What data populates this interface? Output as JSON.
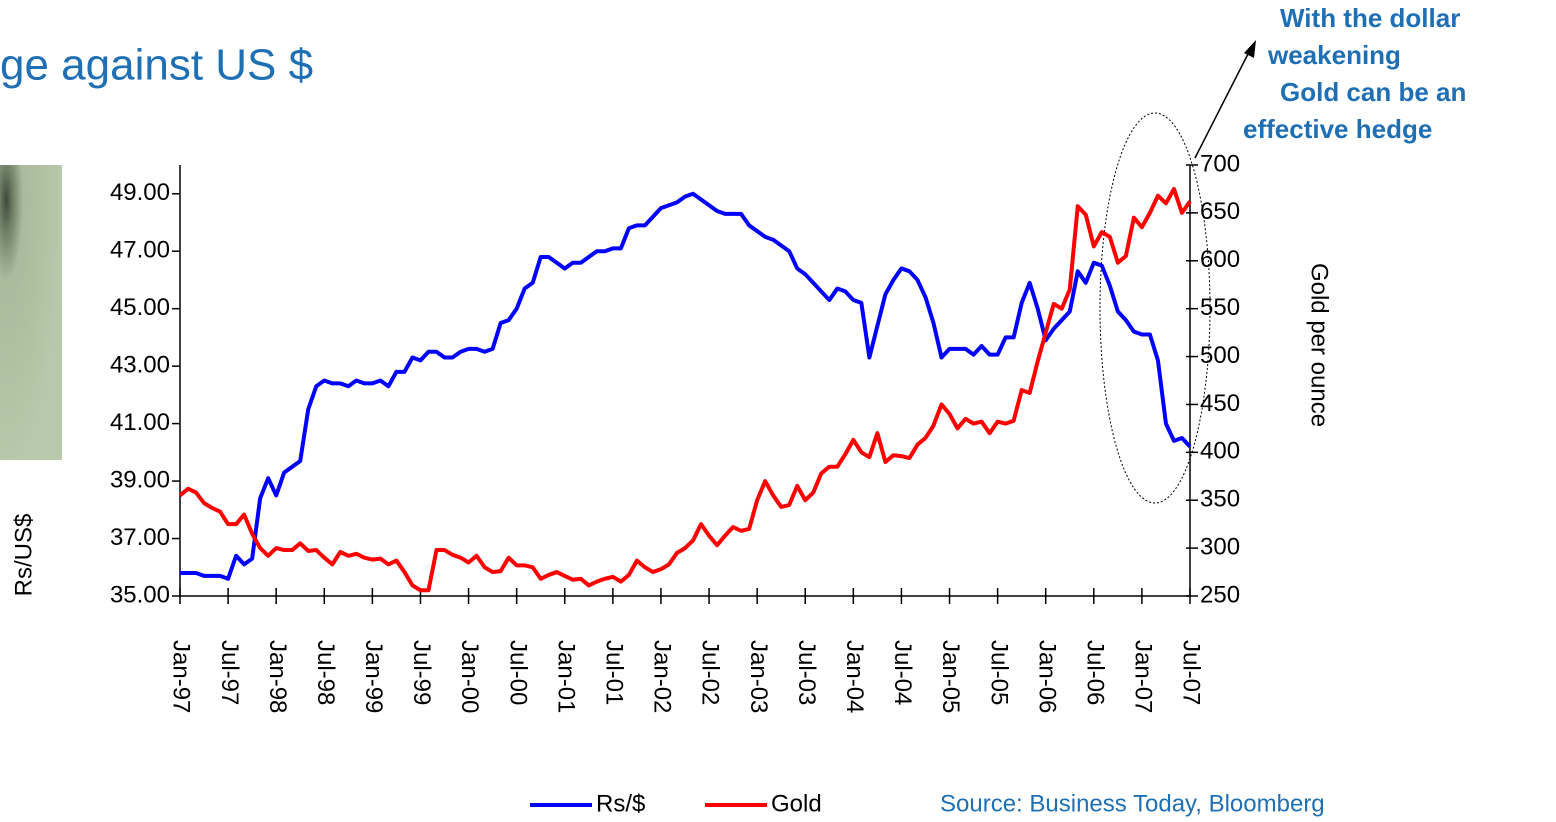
{
  "chart_data": {
    "type": "line",
    "title": "ge against US $",
    "annotation": [
      "With the dollar",
      "weakening",
      "Gold can be an",
      "effective hedge"
    ],
    "source": "Source: Business Today, Bloomberg",
    "y_label": "Rs/US$",
    "y2_label": "Gold per ounce",
    "categories": [
      "Jan-97",
      null,
      null,
      null,
      null,
      null,
      "Jul-97",
      null,
      null,
      null,
      null,
      null,
      "Jan-98",
      null,
      null,
      null,
      null,
      null,
      "Jul-98",
      null,
      null,
      null,
      null,
      null,
      "Jan-99",
      null,
      null,
      null,
      null,
      null,
      "Jul-99",
      null,
      null,
      null,
      null,
      null,
      "Jan-00",
      null,
      null,
      null,
      null,
      null,
      "Jul-00",
      null,
      null,
      null,
      null,
      null,
      "Jan-01",
      null,
      null,
      null,
      null,
      null,
      "Jul-01",
      null,
      null,
      null,
      null,
      null,
      "Jan-02",
      null,
      null,
      null,
      null,
      null,
      "Jul-02",
      null,
      null,
      null,
      null,
      null,
      "Jan-03",
      null,
      null,
      null,
      null,
      null,
      "Jul-03",
      null,
      null,
      null,
      null,
      null,
      "Jan-04",
      null,
      null,
      null,
      null,
      null,
      "Jul-04",
      null,
      null,
      null,
      null,
      null,
      "Jan-05",
      null,
      null,
      null,
      null,
      null,
      "Jul-05",
      null,
      null,
      null,
      null,
      null,
      "Jan-06",
      null,
      null,
      null,
      null,
      null,
      "Jul-06",
      null,
      null,
      null,
      null,
      null,
      "Jan-07",
      null,
      null,
      null,
      null,
      null,
      "Jul-07"
    ],
    "series": [
      {
        "name": "Rs/$",
        "color": "#0000ff",
        "values": [
          35.8,
          35.8,
          35.8,
          35.7,
          35.7,
          35.7,
          35.6,
          36.4,
          36.1,
          36.3,
          38.4,
          39.1,
          38.5,
          39.3,
          39.5,
          39.7,
          41.5,
          42.3,
          42.5,
          42.4,
          42.4,
          42.3,
          42.5,
          42.4,
          42.4,
          42.5,
          42.3,
          42.8,
          42.8,
          43.3,
          43.2,
          43.5,
          43.5,
          43.3,
          43.3,
          43.5,
          43.6,
          43.6,
          43.5,
          43.6,
          44.5,
          44.6,
          45.0,
          45.7,
          45.9,
          46.8,
          46.8,
          46.6,
          46.4,
          46.6,
          46.6,
          46.8,
          47.0,
          47.0,
          47.1,
          47.1,
          47.8,
          47.9,
          47.9,
          48.2,
          48.5,
          48.6,
          48.7,
          48.9,
          49.0,
          48.8,
          48.6,
          48.4,
          48.3,
          48.3,
          48.3,
          47.9,
          47.7,
          47.5,
          47.4,
          47.2,
          47.0,
          46.4,
          46.2,
          45.9,
          45.6,
          45.3,
          45.7,
          45.6,
          45.3,
          45.2,
          43.3,
          44.4,
          45.5,
          46.0,
          46.4,
          46.3,
          46.0,
          45.4,
          44.5,
          43.3,
          43.6,
          43.6,
          43.6,
          43.4,
          43.7,
          43.4,
          43.4,
          44.0,
          44.0,
          45.2,
          45.9,
          45.0,
          43.9,
          44.3,
          44.6,
          44.9,
          46.3,
          45.9,
          46.6,
          46.5,
          45.8,
          44.9,
          44.6,
          44.2,
          44.1,
          44.1,
          43.2,
          41.0,
          40.4,
          40.5,
          40.2
        ]
      },
      {
        "name": "Gold",
        "color": "#ff0000",
        "axis": "y2",
        "values": [
          355,
          362,
          358,
          347,
          342,
          338,
          325,
          325,
          335,
          315,
          300,
          292,
          300,
          298,
          298,
          305,
          297,
          298,
          290,
          283,
          296,
          292,
          294,
          290,
          288,
          289,
          283,
          287,
          275,
          261,
          256,
          256,
          298,
          298,
          293,
          290,
          285,
          292,
          280,
          275,
          276,
          290,
          282,
          282,
          280,
          268,
          272,
          275,
          271,
          267,
          268,
          261,
          265,
          268,
          270,
          265,
          272,
          287,
          280,
          275,
          278,
          283,
          295,
          300,
          308,
          325,
          313,
          303,
          313,
          322,
          318,
          320,
          350,
          370,
          355,
          343,
          345,
          365,
          350,
          358,
          378,
          385,
          385,
          398,
          413,
          400,
          395,
          420,
          390,
          397,
          396,
          394,
          408,
          415,
          428,
          450,
          440,
          425,
          435,
          430,
          432,
          420,
          432,
          430,
          433,
          465,
          462,
          495,
          525,
          555,
          550,
          570,
          657,
          648,
          615,
          630,
          625,
          598,
          605,
          645,
          635,
          650,
          668,
          660,
          675,
          650,
          662
        ]
      }
    ],
    "ylim": [
      35,
      50
    ],
    "yticks": [
      {
        "value": 35,
        "label": "35.00"
      },
      {
        "value": 37,
        "label": "37.00"
      },
      {
        "value": 39,
        "label": "39.00"
      },
      {
        "value": 41,
        "label": "41.00"
      },
      {
        "value": 43,
        "label": "43.00"
      },
      {
        "value": 45,
        "label": "45.00"
      },
      {
        "value": 47,
        "label": "47.00"
      },
      {
        "value": 49,
        "label": "49.00"
      }
    ],
    "y2lim": [
      250,
      700
    ],
    "y2ticks": [
      250,
      300,
      350,
      400,
      450,
      500,
      550,
      600,
      650,
      700
    ],
    "grid": false
  }
}
